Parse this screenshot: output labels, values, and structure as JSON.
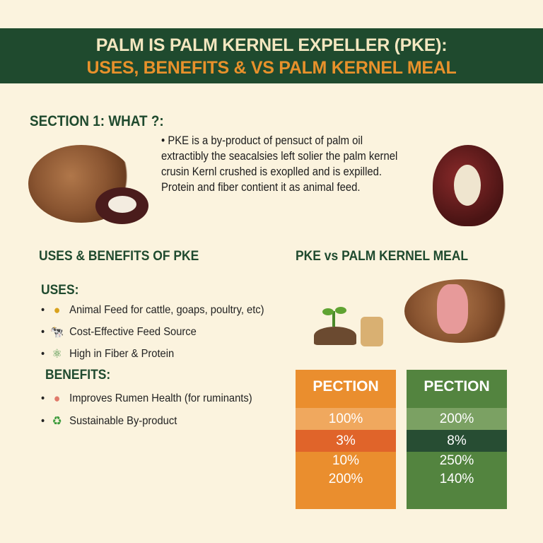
{
  "header": {
    "title_line1": "PALM IS PALM KERNEL EXPELLER (PKE):",
    "title_line2": "USES, BENEFITS & VS PALM KERNEL MEAL"
  },
  "section1": {
    "title": "SECTION 1: WHAT ?:",
    "lines": [
      "•  PKE is a by-product of pensuct of palm oil",
      "extractibly the seacalsies left solier the palm kernel",
      "crusin Kernl crushed is exoplled and is expilled.",
      "Protein and fiber contient it as animal feed."
    ]
  },
  "uses_benefits": {
    "title": "USES & BENEFITS OF PKE",
    "uses_heading": "USES:",
    "uses": [
      {
        "icon": "coins-icon",
        "label": "Animal Feed for cattle, goaps, poultry, etc)"
      },
      {
        "icon": "cow-icon",
        "label": "Cost-Effective Feed Source"
      },
      {
        "icon": "molecule-icon",
        "label": "High in Fiber & Protein"
      }
    ],
    "benefits_heading": "BENEFITS:",
    "benefits": [
      {
        "icon": "stomach-icon",
        "label": "Improves Rumen Health (for ruminants)"
      },
      {
        "icon": "recycle-icon",
        "label": "Sustainable By-product"
      }
    ]
  },
  "comparison": {
    "title": "PKE vs PALM KERNEL MEAL",
    "columns": [
      {
        "header": "PECTION",
        "values": [
          "100%",
          "3%",
          "10%",
          "200%"
        ],
        "color": "#ea8e2e"
      },
      {
        "header": "PECTION",
        "values": [
          "200%",
          "8%",
          "250%",
          "140%"
        ],
        "color": "#53843f"
      }
    ]
  },
  "colors": {
    "header_bg": "#1f4a2e",
    "accent_orange": "#e8912b",
    "background": "#fbf3de"
  }
}
